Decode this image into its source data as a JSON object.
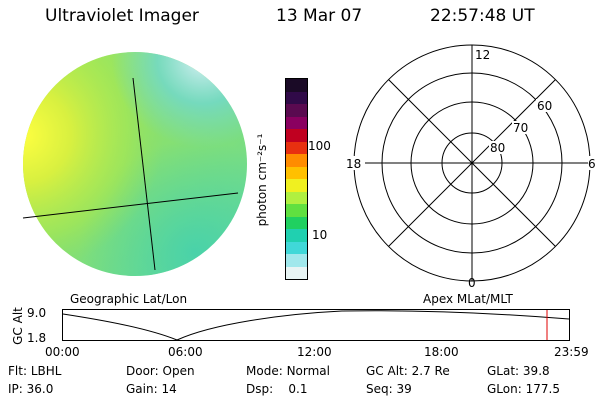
{
  "header": {
    "title": "Ultraviolet Imager",
    "date": "13 Mar 07",
    "time": "22:57:48 UT"
  },
  "colorbar": {
    "unit_label": "photon cm⁻²s⁻¹",
    "ticks": [
      "100",
      "10"
    ],
    "colors": [
      "#1a0a26",
      "#300a48",
      "#5a0a50",
      "#8a0060",
      "#c00020",
      "#e83010",
      "#ff8c00",
      "#ffc000",
      "#f0f020",
      "#b0f040",
      "#60e040",
      "#20d060",
      "#20d0b0",
      "#40d8d8",
      "#a0e8ec",
      "#e8f4f4"
    ]
  },
  "polar": {
    "mlt_labels": {
      "top": "12",
      "left": "18",
      "right": "6",
      "bottom": "0"
    },
    "lat_labels": [
      "60",
      "70",
      "80"
    ]
  },
  "geo_label": "Geographic Lat/Lon",
  "apex_label": "Apex MLat/MLT",
  "altitude_plot": {
    "ylabel": "GC Alt",
    "yticks": [
      "9.0",
      "1.8"
    ],
    "xticks": [
      "00:00",
      "06:00",
      "12:00",
      "18:00",
      "23:59"
    ]
  },
  "status": {
    "row1": [
      {
        "label": "Flt:",
        "value": "LBHL"
      },
      {
        "label": "Door:",
        "value": "Open"
      },
      {
        "label": "Mode:",
        "value": "Normal"
      },
      {
        "label": "GC Alt:",
        "value": "2.7 Re"
      },
      {
        "label": "GLat:",
        "value": "39.8"
      }
    ],
    "row2": [
      {
        "label": "IP:",
        "value": "36.0"
      },
      {
        "label": "Gain:",
        "value": "14"
      },
      {
        "label": "Dsp:",
        "value": "0.1"
      },
      {
        "label": "Seq:",
        "value": "39"
      },
      {
        "label": "GLon:",
        "value": "177.5"
      }
    ]
  }
}
